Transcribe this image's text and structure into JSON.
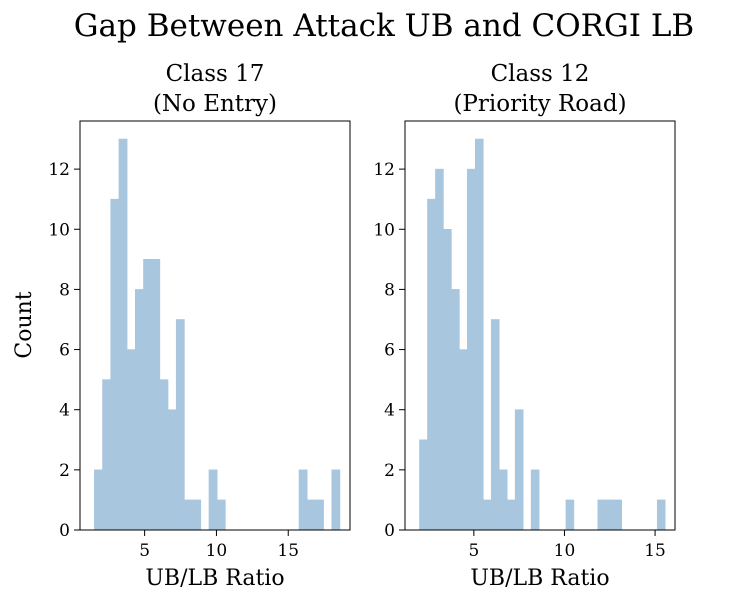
{
  "figure": {
    "title": "Gap Between Attack UB and CORGI LB",
    "ylabel": "Count"
  },
  "chart_data": [
    {
      "type": "bar",
      "title": "Class 17\n(No Entry)",
      "title_lines": [
        "Class 17",
        "(No Entry)"
      ],
      "xlabel": "UB/LB Ratio",
      "ylabel": "Count",
      "xlim": [
        0.5,
        19.3
      ],
      "ylim": [
        0,
        13.6
      ],
      "xticks": [
        5,
        10,
        15
      ],
      "yticks": [
        0,
        2,
        4,
        6,
        8,
        10,
        12
      ],
      "bin_width": 0.57,
      "bar_color": "#a9c6df",
      "grid": false,
      "x": [
        1.5,
        2.07,
        2.64,
        3.21,
        3.78,
        4.35,
        4.92,
        5.49,
        6.06,
        6.63,
        7.2,
        7.77,
        8.34,
        9.48,
        10.05,
        15.75,
        16.32,
        16.89,
        18.03
      ],
      "values": [
        2,
        5,
        11,
        13,
        6,
        8,
        9,
        9,
        5,
        4,
        7,
        1,
        1,
        2,
        1,
        2,
        1,
        1,
        2
      ]
    },
    {
      "type": "bar",
      "title": "Class 12\n(Priority Road)",
      "title_lines": [
        "Class 12",
        "(Priority Road)"
      ],
      "xlabel": "UB/LB Ratio",
      "ylabel": "",
      "xlim": [
        1.2,
        16.1
      ],
      "ylim": [
        0,
        13.6
      ],
      "xticks": [
        5,
        10,
        15
      ],
      "yticks": [
        0,
        2,
        4,
        6,
        8,
        10,
        12
      ],
      "bin_width": 0.44,
      "bar_color": "#a9c6df",
      "grid": false,
      "x": [
        2.0,
        2.44,
        2.88,
        3.32,
        3.76,
        4.2,
        4.64,
        5.08,
        5.52,
        5.96,
        6.4,
        6.84,
        7.28,
        8.16,
        10.08,
        11.84,
        12.28,
        12.72,
        15.12
      ],
      "values": [
        3,
        11,
        12,
        10,
        8,
        6,
        12,
        13,
        1,
        7,
        2,
        1,
        4,
        2,
        1,
        1,
        1,
        1,
        1
      ]
    }
  ]
}
